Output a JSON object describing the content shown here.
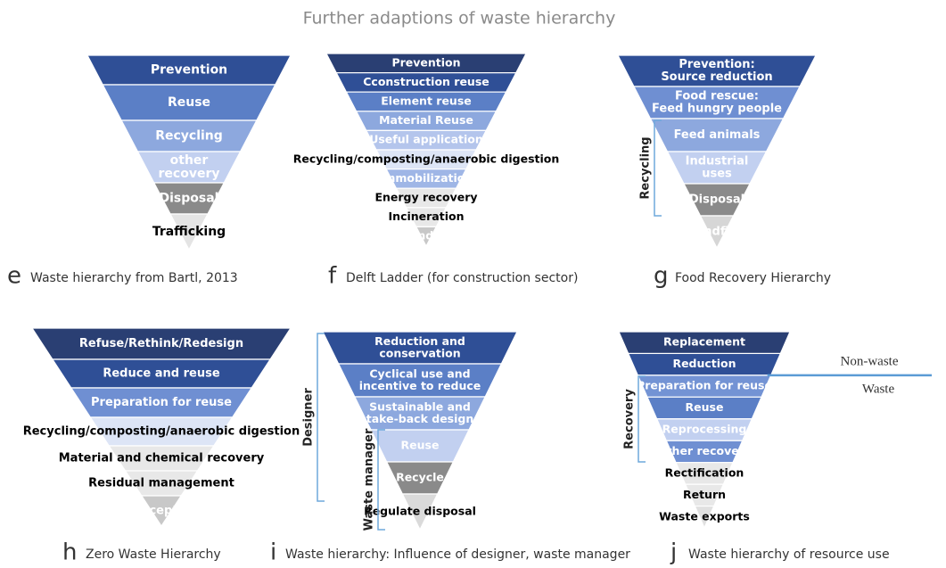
{
  "title": "Further adaptions of waste hierarchy",
  "panels": [
    {
      "letter": "e",
      "caption": "Waste hierarchy from Bartl, 2013",
      "levels": [
        {
          "label": [
            "Prevention"
          ],
          "color": "#2f4f96"
        },
        {
          "label": [
            "Reuse"
          ],
          "color": "#5b7fc6"
        },
        {
          "label": [
            "Recycling"
          ],
          "color": "#8da8de"
        },
        {
          "label": [
            "other",
            "recovery"
          ],
          "color": "#c2d0f0"
        },
        {
          "label": [
            "Disposal"
          ],
          "color": "#8a8a8a"
        },
        {
          "label": [
            "Trafficking"
          ],
          "color": "#e4e4e4"
        }
      ]
    },
    {
      "letter": "f",
      "caption": "Delft Ladder (for construction sector)",
      "levels": [
        {
          "label": [
            "Prevention"
          ],
          "color": "#2a3f73"
        },
        {
          "label": [
            "Cconstruction reuse"
          ],
          "color": "#2f4f96"
        },
        {
          "label": [
            "Element reuse"
          ],
          "color": "#5b7fc6"
        },
        {
          "label": [
            "Material Reuse"
          ],
          "color": "#8da8de"
        },
        {
          "label": [
            "Useful application"
          ],
          "color": "#b4c5ec"
        },
        {
          "label": [
            "Recycling/composting/anaerobic digestion"
          ],
          "color": "#dde5f6"
        },
        {
          "label": [
            "Immobilization"
          ],
          "color": "#9fb6e6"
        },
        {
          "label": [
            "Energy recovery"
          ],
          "color": "#e8e8e8"
        },
        {
          "label": [
            "Incineration"
          ],
          "color": "#e8e8e8"
        },
        {
          "label": [
            "Landfill"
          ],
          "color": "#c8c8c8"
        }
      ]
    },
    {
      "letter": "g",
      "caption": "Food Recovery Hierarchy",
      "levels": [
        {
          "label": [
            "Prevention:",
            "Source reduction"
          ],
          "color": "#2f4f96"
        },
        {
          "label": [
            "Food rescue:",
            "Feed hungry people"
          ],
          "color": "#6f8fd2"
        },
        {
          "label": [
            "Feed animals"
          ],
          "color": "#8da8de"
        },
        {
          "label": [
            "Industrial",
            "uses"
          ],
          "color": "#c2d0f0"
        },
        {
          "label": [
            "Disposal"
          ],
          "color": "#8a8a8a"
        },
        {
          "label": [
            "Discarding:Landfill/incineration"
          ],
          "color": "#d6d6d6"
        }
      ],
      "side": [
        "Recycling"
      ]
    },
    {
      "letter": "h",
      "caption": "Zero Waste Hierarchy",
      "levels": [
        {
          "label": [
            "Refuse/Rethink/Redesign"
          ],
          "color": "#2a3f73"
        },
        {
          "label": [
            "Reduce and reuse"
          ],
          "color": "#2f4f96"
        },
        {
          "label": [
            "Preparation for reuse"
          ],
          "color": "#6f8fd2"
        },
        {
          "label": [
            "Recycling/composting/anaerobic digestion"
          ],
          "color": "#dde5f6"
        },
        {
          "label": [
            "Material and chemical recovery"
          ],
          "color": "#e8e8e8"
        },
        {
          "label": [
            "Residual management"
          ],
          "color": "#e8e8e8"
        },
        {
          "label": [
            "Unacceptable"
          ],
          "color": "#c8c8c8"
        }
      ]
    },
    {
      "letter": "i",
      "caption": "Waste hierarchy: Influence of designer, waste manager",
      "levels": [
        {
          "label": [
            "Reduction and",
            "conservation"
          ],
          "color": "#2f4f96"
        },
        {
          "label": [
            "Cyclical use and",
            "incentive to reduce"
          ],
          "color": "#5b7fc6"
        },
        {
          "label": [
            "Sustainable and",
            "take-back design"
          ],
          "color": "#8da8de"
        },
        {
          "label": [
            "Reuse"
          ],
          "color": "#c2d0f0"
        },
        {
          "label": [
            "Recycle"
          ],
          "color": "#8a8a8a"
        },
        {
          "label": [
            "Regulate disposal"
          ],
          "color": "#dadada"
        }
      ],
      "side": [
        "Designer",
        "Waste manager"
      ]
    },
    {
      "letter": "j",
      "caption": "Waste hierarchy of resource use",
      "levels": [
        {
          "label": [
            "Replacement"
          ],
          "color": "#2a3f73"
        },
        {
          "label": [
            "Reduction"
          ],
          "color": "#2f4f96"
        },
        {
          "label": [
            "Preparation for reuse"
          ],
          "color": "#7393d4"
        },
        {
          "label": [
            "Reuse"
          ],
          "color": "#5b7fc6"
        },
        {
          "label": [
            "Reprocessing"
          ],
          "color": "#c2d0f0"
        },
        {
          "label": [
            "Other recovery"
          ],
          "color": "#6f8fd2"
        },
        {
          "label": [
            "Rectification"
          ],
          "color": "#e8e8e8"
        },
        {
          "label": [
            "Return"
          ],
          "color": "#e8e8e8"
        },
        {
          "label": [
            "Waste exports"
          ],
          "color": "#e0e0e0"
        }
      ],
      "side": [
        "Recovery"
      ],
      "boundary": {
        "above": "Non-waste",
        "below": "Waste"
      }
    }
  ]
}
